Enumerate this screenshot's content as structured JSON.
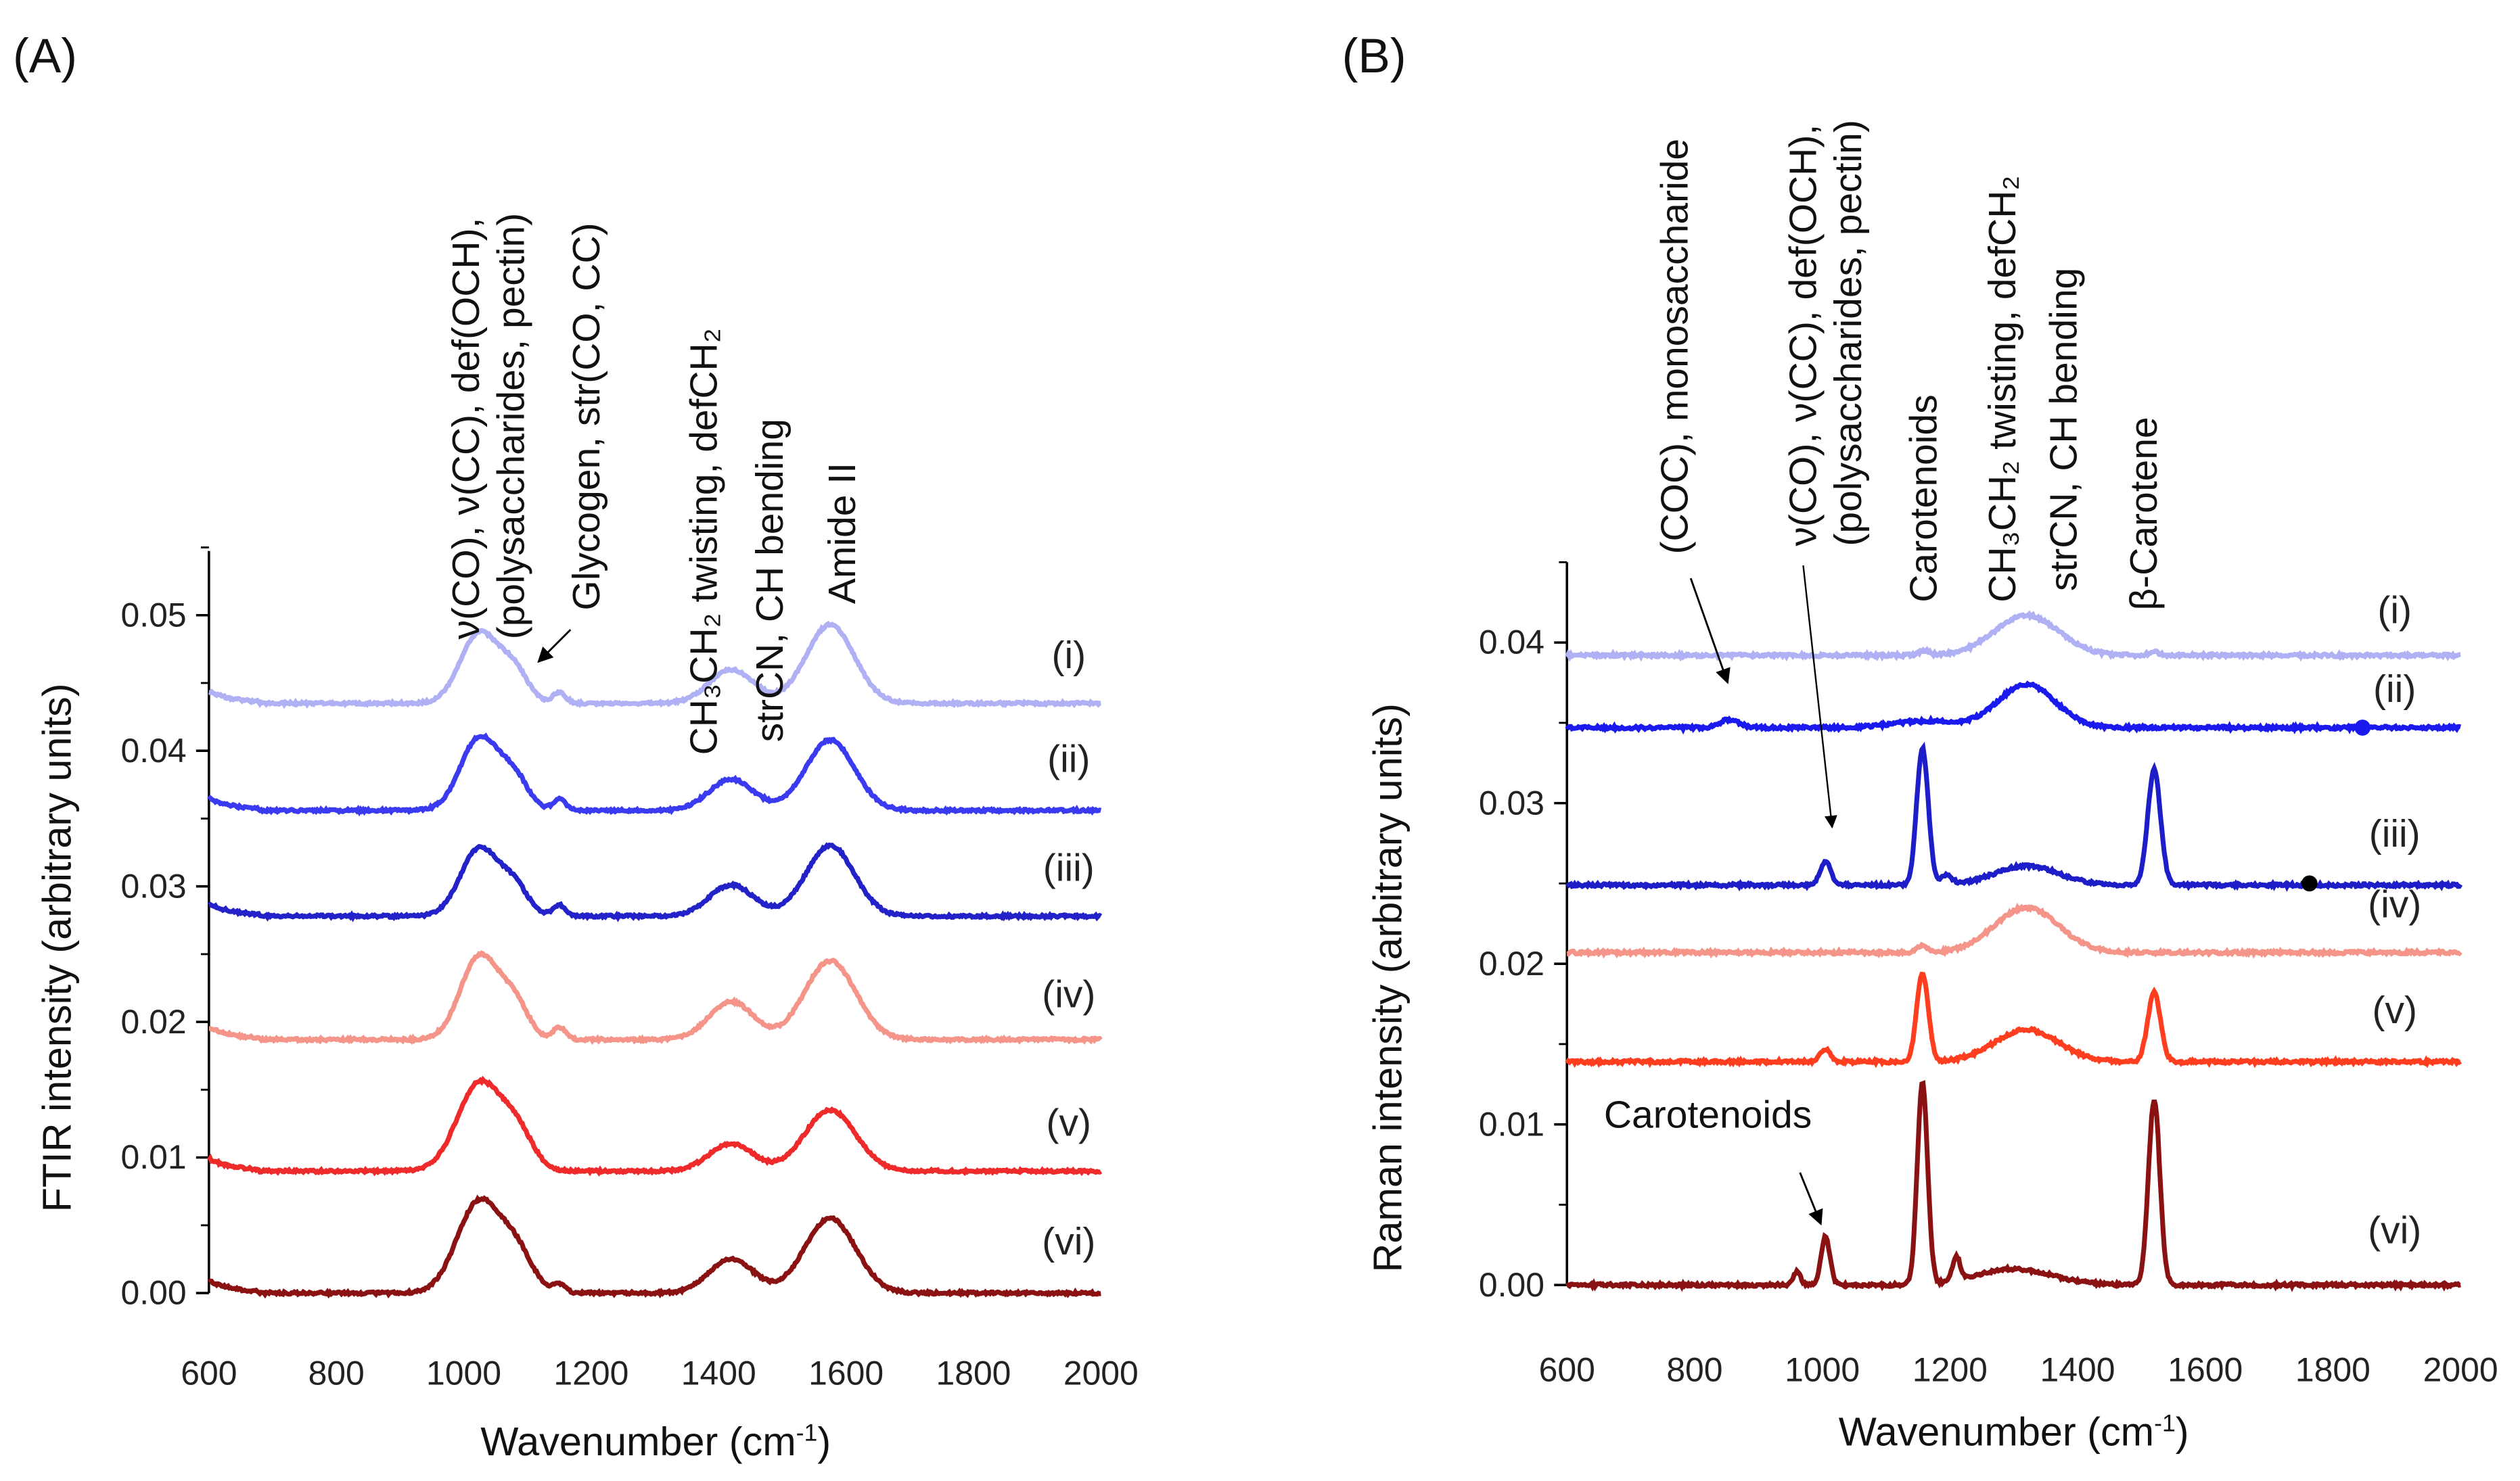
{
  "chart_data": [
    {
      "type": "line",
      "panel_label": "(A)",
      "xlabel": "Wavenumber (cm",
      "xlabel_sup": "-1",
      "xlabel_end": ")",
      "ylabel": "FTIR intensity (arbitrary units)",
      "xlim": [
        600,
        2000
      ],
      "ylim": [
        0,
        0.055
      ],
      "xticks": [
        "600",
        "800",
        "1000",
        "1200",
        "1400",
        "1600",
        "1800",
        "2000"
      ],
      "yticks": [
        "0.00",
        "0.01",
        "0.02",
        "0.03",
        "0.04",
        "0.05"
      ],
      "annotations": {
        "a1": "ν(CO), ν(CC), def(OCH),",
        "a2": "(polysaccharides, pectin)",
        "a3": "Glycogen, str(CO, CC)",
        "a4": "CH₃CH₂ twisting, defCH₂",
        "a5": "strCN, CH bending",
        "a6": "Amide II"
      },
      "series": [
        {
          "name": "(i)",
          "color": "#b0b0f4",
          "baseline": 0.0435,
          "peaks": [
            [
              1025,
              0.0052,
              30
            ],
            [
              1080,
              0.0022,
              22
            ],
            [
              1150,
              0.0008,
              10
            ],
            [
              1420,
              0.0025,
              35
            ],
            [
              1575,
              0.0058,
              38
            ]
          ]
        },
        {
          "name": "(ii)",
          "color": "#3a3af0",
          "baseline": 0.0356,
          "peaks": [
            [
              1025,
              0.0054,
              30
            ],
            [
              1080,
              0.0022,
              22
            ],
            [
              1150,
              0.0008,
              10
            ],
            [
              1420,
              0.0023,
              35
            ],
            [
              1575,
              0.0052,
              38
            ]
          ]
        },
        {
          "name": "(iii)",
          "color": "#2222c8",
          "baseline": 0.0278,
          "peaks": [
            [
              1025,
              0.005,
              30
            ],
            [
              1080,
              0.002,
              22
            ],
            [
              1150,
              0.0008,
              10
            ],
            [
              1420,
              0.0023,
              35
            ],
            [
              1575,
              0.0052,
              38
            ]
          ]
        },
        {
          "name": "(iv)",
          "color": "#f5958a",
          "baseline": 0.0187,
          "peaks": [
            [
              1025,
              0.0062,
              30
            ],
            [
              1080,
              0.0025,
              22
            ],
            [
              1150,
              0.0009,
              10
            ],
            [
              1420,
              0.0028,
              35
            ],
            [
              1575,
              0.0058,
              40
            ]
          ]
        },
        {
          "name": "(v)",
          "color": "#ee2a2a",
          "baseline": 0.009,
          "peaks": [
            [
              1025,
              0.0065,
              35
            ],
            [
              1085,
              0.0025,
              25
            ],
            [
              1420,
              0.002,
              35
            ],
            [
              1575,
              0.0045,
              40
            ]
          ]
        },
        {
          "name": "(vi)",
          "color": "#8b1212",
          "baseline": 0.0,
          "peaks": [
            [
              1025,
              0.0068,
              35
            ],
            [
              1085,
              0.0025,
              25
            ],
            [
              1150,
              0.0006,
              10
            ],
            [
              1420,
              0.0025,
              35
            ],
            [
              1575,
              0.0055,
              40
            ]
          ]
        }
      ]
    },
    {
      "type": "line",
      "panel_label": "(B)",
      "xlabel": "Wavenumber (cm",
      "xlabel_sup": "-1",
      "xlabel_end": ")",
      "ylabel": "Raman intensity (arbitrary units)",
      "xlim": [
        600,
        2000
      ],
      "ylim": [
        0,
        0.045
      ],
      "xticks": [
        "600",
        "800",
        "1000",
        "1200",
        "1400",
        "1600",
        "1800",
        "2000"
      ],
      "yticks": [
        "0.00",
        "0.01",
        "0.02",
        "0.03",
        "0.04"
      ],
      "annotations": {
        "b1": "(COC), monosaccharide",
        "b2": "ν(CO), ν(CC), def(OCH),",
        "b3": "(polysaccharides, pectin)",
        "b4": "Carotenoids",
        "b5": "CH₃CH₂ twisting, defCH₂",
        "b6": "strCN, CH bending",
        "b7": "β-Carotene",
        "b8": "Carotenoids"
      },
      "series": [
        {
          "name": "(i)",
          "color": "#b0b0f4",
          "baseline": 0.0392,
          "peaks": [
            [
              1160,
              0.0003,
              8
            ],
            [
              1320,
              0.0025,
              50
            ],
            [
              1520,
              0.0002,
              8
            ]
          ]
        },
        {
          "name": "(ii)",
          "color": "#1a1aee",
          "baseline": 0.0347,
          "peaks": [
            [
              855,
              0.0005,
              15
            ],
            [
              1160,
              0.0004,
              50
            ],
            [
              1320,
              0.0027,
              45
            ]
          ]
        },
        {
          "name": "(iii)",
          "color": "#1e1ec8",
          "baseline": 0.0249,
          "peaks": [
            [
              1005,
              0.0015,
              8
            ],
            [
              1157,
              0.0085,
              9
            ],
            [
              1195,
              0.0006,
              8
            ],
            [
              1320,
              0.0012,
              50
            ],
            [
              1520,
              0.0072,
              10
            ]
          ]
        },
        {
          "name": "(iv)",
          "color": "#f5958a",
          "baseline": 0.0207,
          "peaks": [
            [
              1157,
              0.0004,
              8
            ],
            [
              1320,
              0.0028,
              50
            ]
          ]
        },
        {
          "name": "(v)",
          "color": "#ff3d1f",
          "baseline": 0.0139,
          "peaks": [
            [
              1005,
              0.0008,
              8
            ],
            [
              1157,
              0.0055,
              9
            ],
            [
              1320,
              0.002,
              50
            ],
            [
              1520,
              0.0043,
              10
            ]
          ]
        },
        {
          "name": "(vi)",
          "color": "#8b1212",
          "baseline": 0.0,
          "peaks": [
            [
              960,
              0.0008,
              6
            ],
            [
              1005,
              0.003,
              7
            ],
            [
              1157,
              0.0125,
              8
            ],
            [
              1210,
              0.0015,
              6
            ],
            [
              1300,
              0.001,
              60
            ],
            [
              1520,
              0.0115,
              9
            ]
          ]
        }
      ]
    }
  ]
}
